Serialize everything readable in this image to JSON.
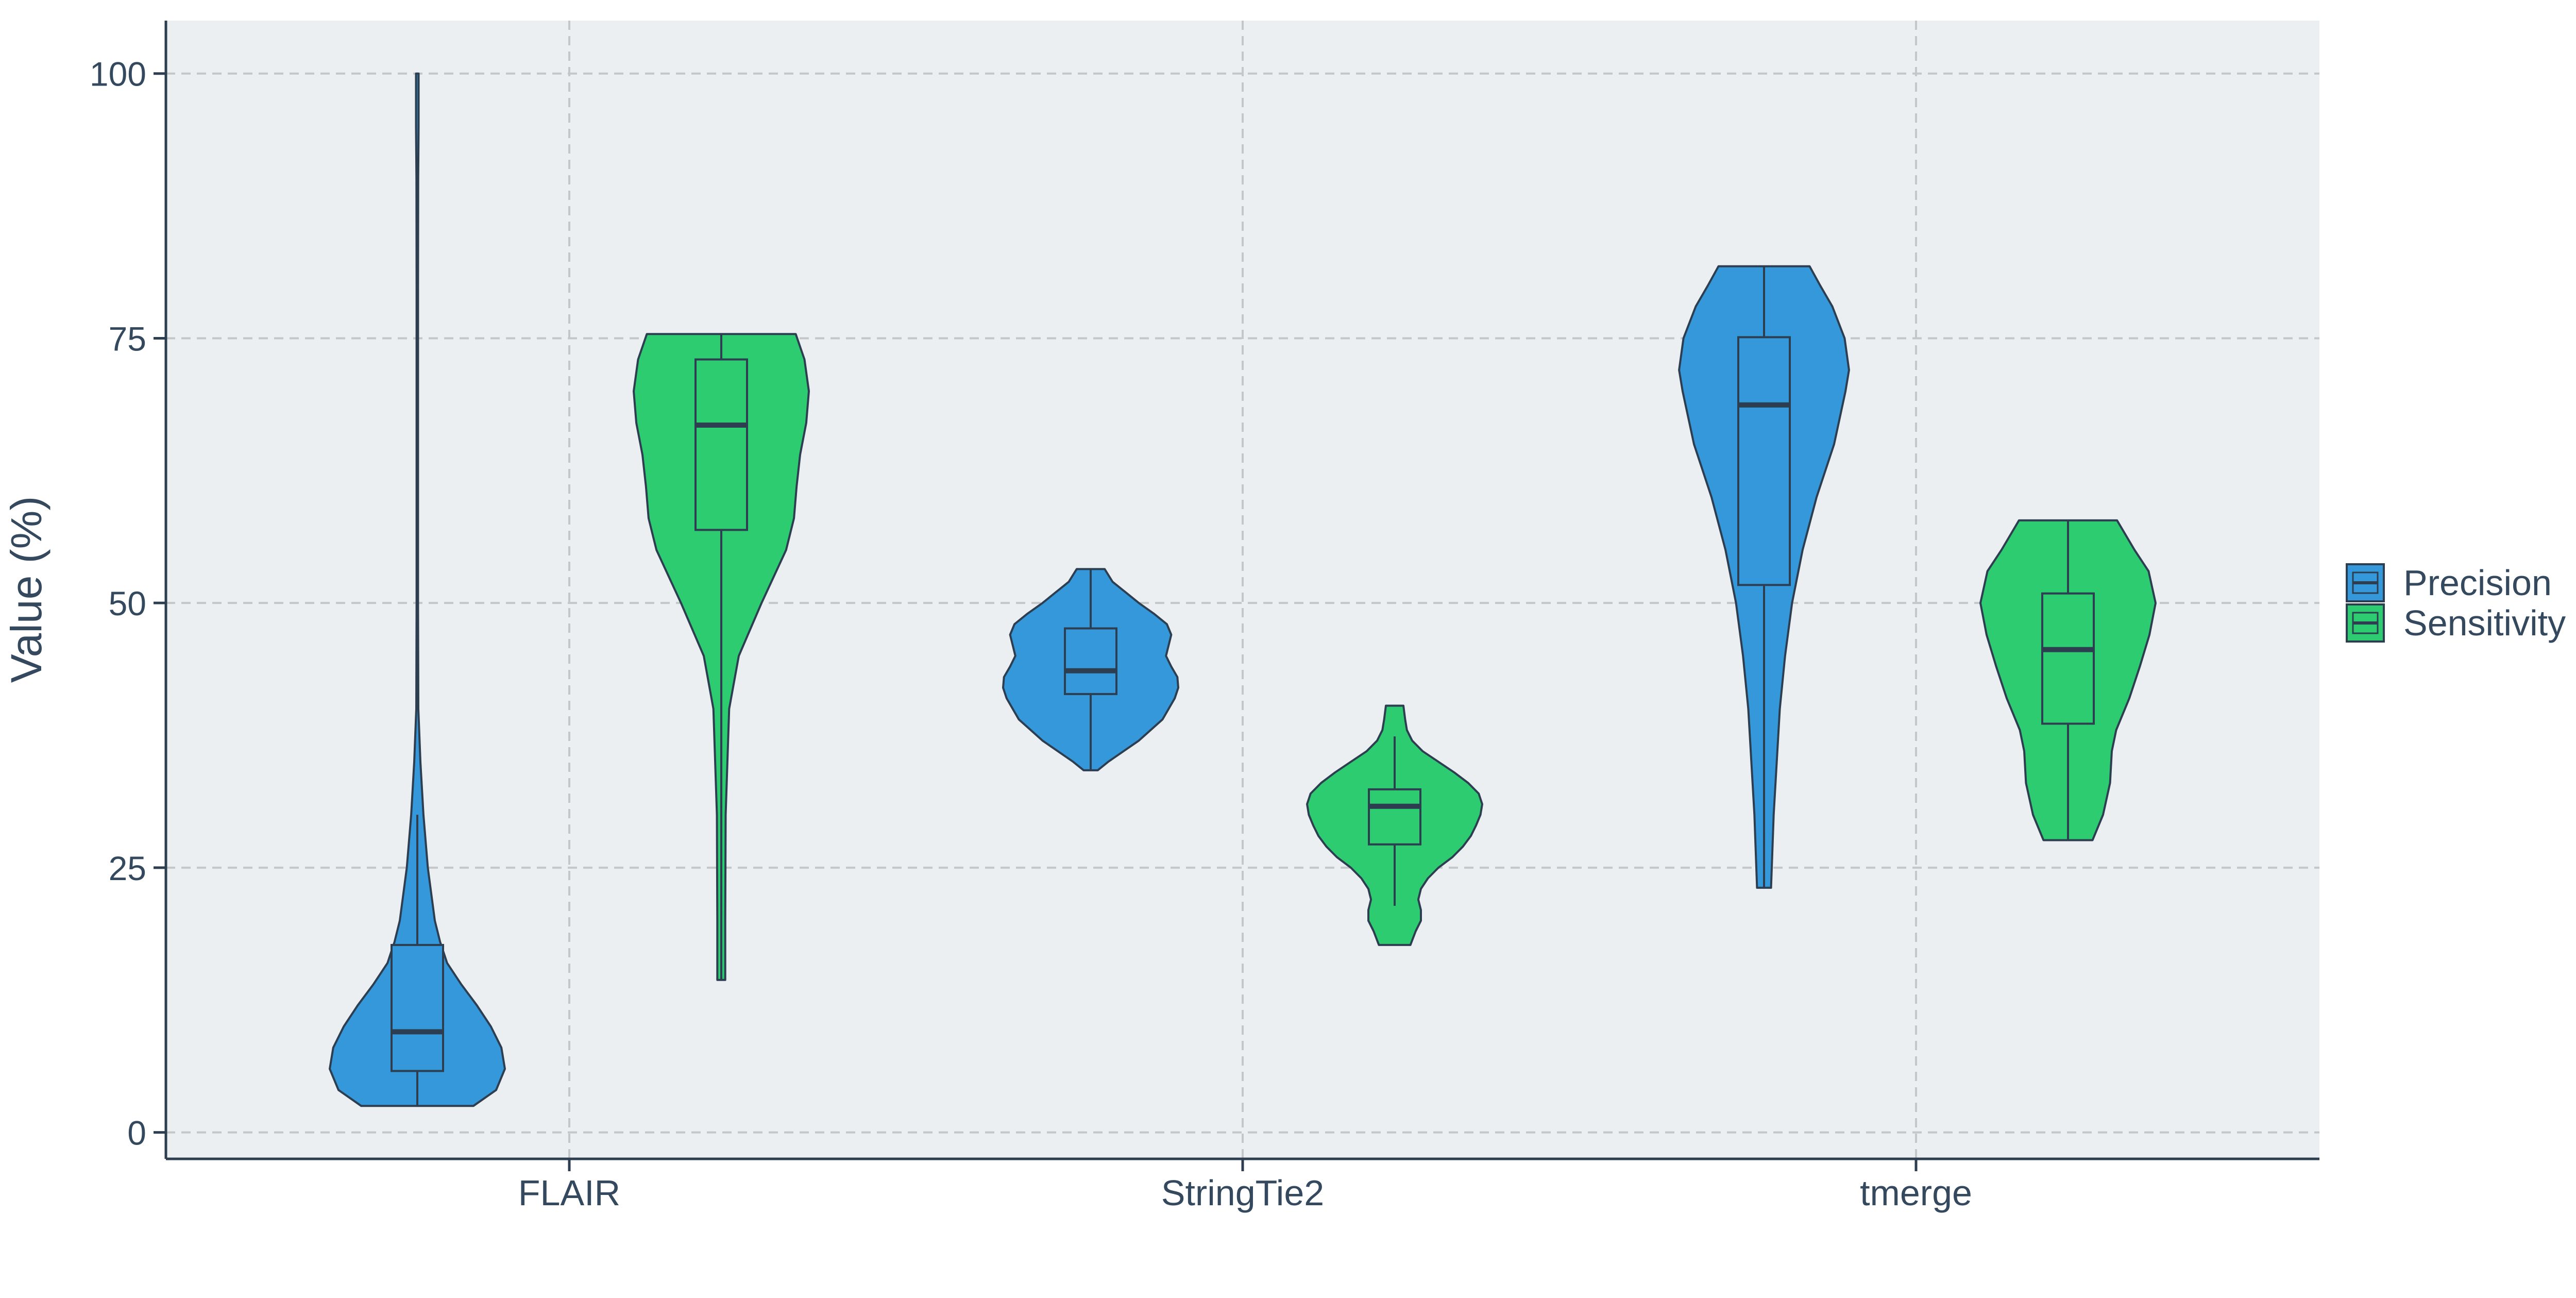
{
  "chart_data": {
    "type": "violin",
    "title": "",
    "xlabel": "",
    "ylabel": "Value (%)",
    "ylim": [
      -2.5,
      105
    ],
    "yticks": [
      0,
      25,
      50,
      75,
      100
    ],
    "categories": [
      "FLAIR",
      "StringTie2",
      "tmerge"
    ],
    "legend_position": "right",
    "grid": "dashed",
    "colors": {
      "background": "#ffffff",
      "panel": "#ECEFF1",
      "grid": "#C4C7C9",
      "axis": "#2C3E50",
      "text": "#34495E",
      "outline": "#2C3E50"
    },
    "series": [
      {
        "name": "Precision",
        "color": "#3498DB",
        "groups": [
          {
            "category": "FLAIR",
            "box": {
              "min": 2.5,
              "q1": 5.8,
              "median": 9.5,
              "q3": 17.7,
              "max": 30
            },
            "density": [
              [
                2.5,
                0.64
              ],
              [
                4,
                0.9
              ],
              [
                6,
                1.0
              ],
              [
                8,
                0.96
              ],
              [
                10,
                0.84
              ],
              [
                12,
                0.68
              ],
              [
                14,
                0.5
              ],
              [
                16,
                0.34
              ],
              [
                18,
                0.26
              ],
              [
                20,
                0.2
              ],
              [
                25,
                0.12
              ],
              [
                30,
                0.07
              ],
              [
                35,
                0.035
              ],
              [
                40,
                0.012
              ],
              [
                50,
                0.008
              ],
              [
                60,
                0.008
              ],
              [
                70,
                0.008
              ],
              [
                80,
                0.008
              ],
              [
                90,
                0.01
              ],
              [
                95,
                0.015
              ],
              [
                100,
                0.015
              ]
            ]
          },
          {
            "category": "StringTie2",
            "box": {
              "min": 34.2,
              "q1": 41.4,
              "median": 43.6,
              "q3": 47.6,
              "max": 53.2
            },
            "density": [
              [
                34.2,
                0.08
              ],
              [
                35,
                0.2
              ],
              [
                37,
                0.55
              ],
              [
                39,
                0.82
              ],
              [
                41,
                0.96
              ],
              [
                42,
                1.0
              ],
              [
                43,
                0.99
              ],
              [
                44,
                0.92
              ],
              [
                45,
                0.86
              ],
              [
                46,
                0.89
              ],
              [
                47,
                0.92
              ],
              [
                48,
                0.87
              ],
              [
                49,
                0.72
              ],
              [
                50,
                0.55
              ],
              [
                51,
                0.4
              ],
              [
                52,
                0.25
              ],
              [
                53.2,
                0.16
              ]
            ]
          },
          {
            "category": "tmerge",
            "box": {
              "min": 23.1,
              "q1": 51.7,
              "median": 68.7,
              "q3": 75.1,
              "max": 81.8
            },
            "density": [
              [
                23.1,
                0.08
              ],
              [
                30,
                0.11
              ],
              [
                40,
                0.18
              ],
              [
                45,
                0.24
              ],
              [
                50,
                0.32
              ],
              [
                55,
                0.44
              ],
              [
                60,
                0.6
              ],
              [
                65,
                0.8
              ],
              [
                70,
                0.93
              ],
              [
                72,
                0.97
              ],
              [
                75,
                0.92
              ],
              [
                78,
                0.78
              ],
              [
                80,
                0.64
              ],
              [
                81.8,
                0.52
              ]
            ]
          }
        ]
      },
      {
        "name": "Sensitivity",
        "color": "#2ECC71",
        "groups": [
          {
            "category": "FLAIR",
            "box": {
              "min": 14.4,
              "q1": 56.9,
              "median": 66.8,
              "q3": 73,
              "max": 75.4
            },
            "density": [
              [
                14.4,
                0.045
              ],
              [
                20,
                0.045
              ],
              [
                30,
                0.05
              ],
              [
                40,
                0.09
              ],
              [
                45,
                0.2
              ],
              [
                50,
                0.46
              ],
              [
                55,
                0.74
              ],
              [
                58,
                0.83
              ],
              [
                61,
                0.86
              ],
              [
                64,
                0.9
              ],
              [
                67,
                0.97
              ],
              [
                70,
                1.0
              ],
              [
                73,
                0.95
              ],
              [
                75.4,
                0.85
              ]
            ]
          },
          {
            "category": "StringTie2",
            "box": {
              "min": 21.4,
              "q1": 27.2,
              "median": 30.8,
              "q3": 32.4,
              "max": 37.4
            },
            "density": [
              [
                17.7,
                0.18
              ],
              [
                19,
                0.24
              ],
              [
                20,
                0.3
              ],
              [
                21,
                0.3
              ],
              [
                22,
                0.27
              ],
              [
                23,
                0.3
              ],
              [
                24,
                0.38
              ],
              [
                25,
                0.5
              ],
              [
                26,
                0.66
              ],
              [
                27,
                0.78
              ],
              [
                28,
                0.87
              ],
              [
                29,
                0.93
              ],
              [
                30,
                0.98
              ],
              [
                31,
                1.0
              ],
              [
                32,
                0.96
              ],
              [
                33,
                0.84
              ],
              [
                34,
                0.68
              ],
              [
                35,
                0.5
              ],
              [
                36,
                0.32
              ],
              [
                37,
                0.2
              ],
              [
                38,
                0.14
              ],
              [
                39,
                0.12
              ],
              [
                40.3,
                0.1
              ]
            ]
          },
          {
            "category": "tmerge",
            "box": {
              "min": 27.6,
              "q1": 38.6,
              "median": 45.6,
              "q3": 50.9,
              "max": 57.8
            },
            "density": [
              [
                27.6,
                0.28
              ],
              [
                30,
                0.4
              ],
              [
                33,
                0.48
              ],
              [
                36,
                0.5
              ],
              [
                38,
                0.55
              ],
              [
                41,
                0.7
              ],
              [
                44,
                0.82
              ],
              [
                47,
                0.93
              ],
              [
                50,
                1.0
              ],
              [
                53,
                0.92
              ],
              [
                55,
                0.76
              ],
              [
                57.8,
                0.56
              ]
            ]
          }
        ]
      }
    ]
  }
}
